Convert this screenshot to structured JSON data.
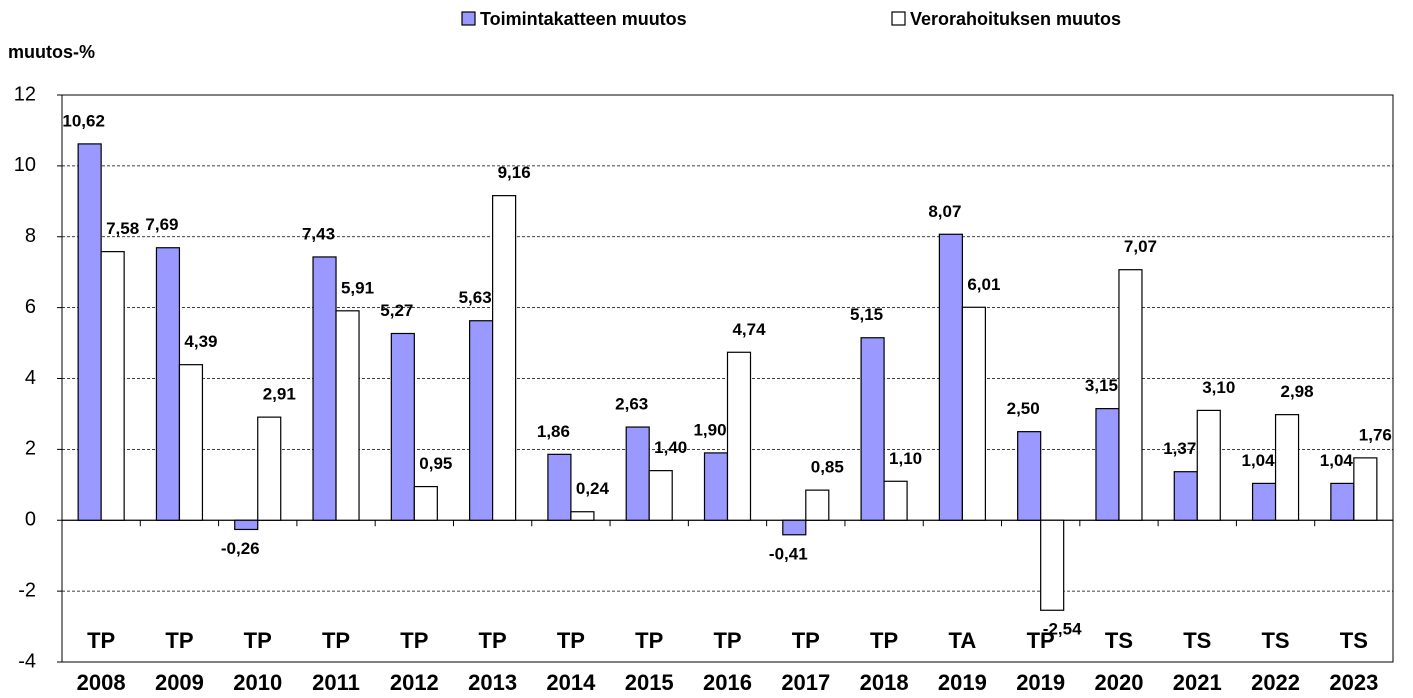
{
  "chart_data": {
    "type": "bar",
    "y_axis_label": "muutos-%",
    "categories": [
      [
        "TP",
        "2008"
      ],
      [
        "TP",
        "2009"
      ],
      [
        "TP",
        "2010"
      ],
      [
        "TP",
        "2011"
      ],
      [
        "TP",
        "2012"
      ],
      [
        "TP",
        "2013"
      ],
      [
        "TP",
        "2014"
      ],
      [
        "TP",
        "2015"
      ],
      [
        "TP",
        "2016"
      ],
      [
        "TP",
        "2017"
      ],
      [
        "TP",
        "2018"
      ],
      [
        "TA",
        "2019"
      ],
      [
        "TP",
        "2019"
      ],
      [
        "TS",
        "2020"
      ],
      [
        "TS",
        "2021"
      ],
      [
        "TS",
        "2022"
      ],
      [
        "TS",
        "2023"
      ]
    ],
    "series": [
      {
        "name": "Toimintakatteen muutos",
        "color": "#9999ff",
        "values": [
          10.62,
          7.69,
          -0.26,
          7.43,
          5.27,
          5.63,
          1.86,
          2.63,
          1.9,
          -0.41,
          5.15,
          8.07,
          2.5,
          3.15,
          1.37,
          1.04,
          1.04
        ],
        "value_labels": [
          "10,62",
          "7,69",
          "-0,26",
          "7,43",
          "5,27",
          "5,63",
          "1,86",
          "2,63",
          "1,90",
          "-0,41",
          "5,15",
          "8,07",
          "2,50",
          "3,15",
          "1,37",
          "1,04",
          "1,04"
        ]
      },
      {
        "name": "Verorahoituksen muutos",
        "color": "#ffffff",
        "values": [
          7.58,
          4.39,
          2.91,
          5.91,
          0.95,
          9.16,
          0.24,
          1.4,
          4.74,
          0.85,
          1.1,
          6.01,
          -2.54,
          7.07,
          3.1,
          2.98,
          1.76
        ],
        "value_labels": [
          "7,58",
          "4,39",
          "2,91",
          "5,91",
          "0,95",
          "9,16",
          "0,24",
          "1,40",
          "4,74",
          "0,85",
          "1,10",
          "6,01",
          "-2,54",
          "7,07",
          "3,10",
          "2,98",
          "1,76"
        ]
      }
    ],
    "ylim": [
      -4,
      12
    ],
    "yticks": [
      -4,
      -2,
      0,
      2,
      4,
      6,
      8,
      10,
      12
    ],
    "grid": true,
    "legend": "top"
  }
}
